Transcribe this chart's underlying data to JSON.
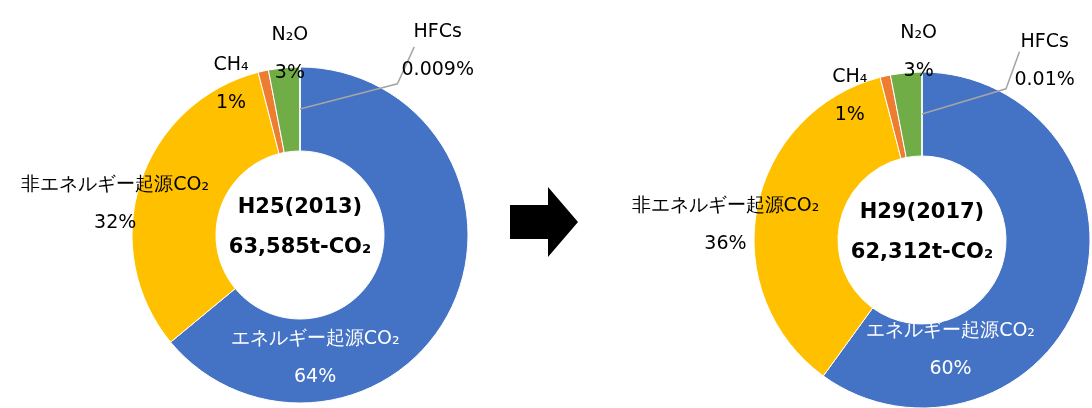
{
  "chart_data": [
    {
      "type": "donut",
      "title": "H25(2013)",
      "subtitle": "63,585t-CO₂",
      "categories": [
        "エネルギー起源CO₂",
        "非エネルギー起源CO₂",
        "CH₄",
        "N₂O",
        "HFCs"
      ],
      "values": [
        64,
        32,
        1,
        3,
        0.009
      ],
      "value_labels": [
        "64%",
        "32%",
        "1%",
        "3%",
        "0.009%"
      ],
      "colors": [
        "#4472c4",
        "#ffc000",
        "#ed7d31",
        "#70ad47",
        "#a5a5a5"
      ]
    },
    {
      "type": "donut",
      "title": "H29(2017)",
      "subtitle": "62,312t-CO₂",
      "categories": [
        "エネルギー起源CO₂",
        "非エネルギー起源CO₂",
        "CH₄",
        "N₂O",
        "HFCs"
      ],
      "values": [
        60,
        36,
        1,
        3,
        0.01
      ],
      "value_labels": [
        "60%",
        "36%",
        "1%",
        "3%",
        "0.01%"
      ],
      "colors": [
        "#4472c4",
        "#ffc000",
        "#ed7d31",
        "#70ad47",
        "#a5a5a5"
      ]
    }
  ]
}
